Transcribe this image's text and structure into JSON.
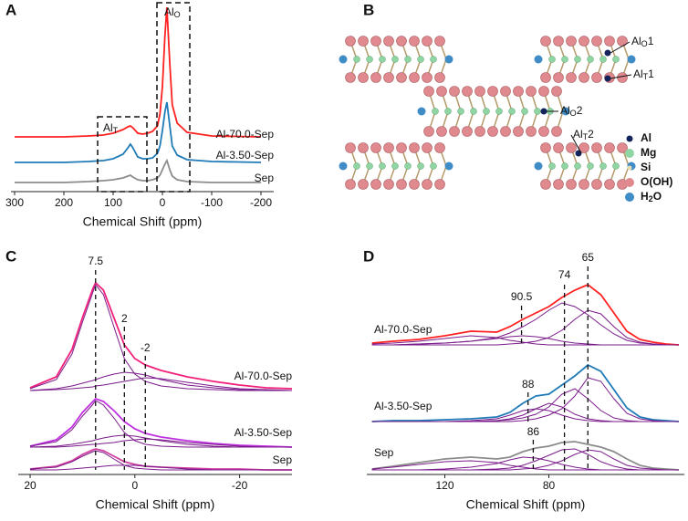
{
  "chart_data": [
    {
      "type": "spectra",
      "panel": "A",
      "x_label": "Chemical Shift (ppm)",
      "xlim": [
        300,
        -200
      ],
      "xticks": [
        300,
        200,
        100,
        0,
        -100,
        -200
      ],
      "annotations": [
        {
          "text": "Al",
          "sub": "T"
        },
        {
          "text": "Al",
          "sub": "O"
        }
      ],
      "x": [
        300,
        200,
        150,
        120,
        100,
        80,
        70,
        65,
        60,
        50,
        40,
        30,
        20,
        10,
        5,
        0,
        -5,
        -9,
        -15,
        -20,
        -30,
        -50,
        -100,
        -200
      ],
      "spectra": [
        {
          "name": "Al-70.0-Sep",
          "color": "#ff2020",
          "values": [
            0,
            0,
            1,
            2,
            4,
            8,
            11,
            12,
            10,
            4,
            3,
            4,
            6,
            12,
            25,
            55,
            110,
            142,
            80,
            35,
            15,
            5,
            1,
            0
          ]
        },
        {
          "name": "Al-3.50-Sep",
          "color": "#1f7bb8",
          "values": [
            0,
            0,
            1,
            2,
            4,
            9,
            16,
            20,
            16,
            6,
            4,
            4,
            5,
            10,
            18,
            35,
            55,
            66,
            40,
            18,
            8,
            3,
            1,
            0
          ]
        },
        {
          "name": "Sep",
          "color": "#8c8c8c",
          "values": [
            0,
            0,
            1,
            2,
            3,
            5,
            7,
            8,
            6,
            3,
            2,
            2,
            3,
            5,
            8,
            14,
            20,
            24,
            14,
            7,
            3,
            1,
            0,
            0
          ]
        }
      ]
    },
    {
      "type": "spectra",
      "panel": "C",
      "x_label": "Chemical Shift (ppm)",
      "xlim": [
        20,
        -30
      ],
      "xticks": [
        20,
        0,
        -20
      ],
      "markers": [
        7.5,
        2,
        -2
      ],
      "component_color": "#7a1a8a",
      "x": [
        20,
        15,
        12,
        10,
        8,
        7.5,
        6,
        4,
        2,
        0,
        -2,
        -5,
        -10,
        -15,
        -20,
        -25,
        -30
      ],
      "spectra": [
        {
          "name": "Al-70.0-Sep",
          "color": "#f0207a",
          "values": [
            3,
            15,
            45,
            80,
            112,
            118,
            110,
            80,
            50,
            35,
            28,
            22,
            15,
            10,
            6,
            3,
            2
          ],
          "components": [
            [
              2,
              12,
              40,
              75,
              108,
              116,
              105,
              70,
              35,
              18,
              10,
              5,
              2,
              1,
              0,
              0,
              0
            ],
            [
              0,
              2,
              5,
              8,
              11,
              12,
              15,
              18,
              20,
              19,
              17,
              12,
              6,
              3,
              1,
              0,
              0
            ],
            [
              0,
              1,
              2,
              3,
              4,
              5,
              6,
              8,
              10,
              12,
              14,
              13,
              9,
              5,
              2,
              1,
              0
            ]
          ]
        },
        {
          "name": "Al-3.50-Sep",
          "color": "#c030e0",
          "values": [
            1,
            8,
            22,
            38,
            50,
            53,
            50,
            40,
            28,
            20,
            15,
            11,
            7,
            4,
            2,
            1,
            0
          ],
          "components": [
            [
              1,
              6,
              19,
              34,
              47,
              51,
              46,
              32,
              16,
              7,
              3,
              1,
              0,
              0,
              0,
              0,
              0
            ],
            [
              0,
              1,
              3,
              5,
              7,
              8,
              10,
              12,
              13,
              12,
              10,
              7,
              3,
              1,
              0,
              0,
              0
            ],
            [
              0,
              0,
              1,
              2,
              3,
              3,
              4,
              5,
              7,
              8,
              9,
              8,
              5,
              3,
              1,
              0,
              0
            ]
          ]
        },
        {
          "name": "Sep",
          "color": "#d040a0",
          "values": [
            1,
            4,
            10,
            17,
            22,
            23,
            21,
            15,
            9,
            6,
            4,
            3,
            2,
            1,
            1,
            0,
            0
          ],
          "components": [
            [
              1,
              3,
              9,
              15,
              20,
              21,
              19,
              12,
              5,
              2,
              1,
              0,
              0,
              0,
              0,
              0,
              0
            ],
            [
              0,
              0,
              1,
              2,
              3,
              3,
              4,
              5,
              5,
              5,
              4,
              3,
              1,
              0,
              0,
              0,
              0
            ]
          ]
        }
      ]
    },
    {
      "type": "spectra",
      "panel": "D",
      "x_label": "Chemical Shift (ppm)",
      "xlim": [
        150,
        30
      ],
      "xticks": [
        120,
        80
      ],
      "markers": [
        90.5,
        74,
        65,
        88,
        86
      ],
      "component_color": "#7a1a8a",
      "x": [
        148,
        140,
        130,
        120,
        110,
        100,
        95,
        90,
        85,
        80,
        75,
        70,
        65,
        60,
        55,
        50,
        45,
        40,
        35,
        30
      ],
      "spectra": [
        {
          "name": "Al-70.0-Sep",
          "color": "#ff2020",
          "values": [
            2,
            4,
            6,
            10,
            15,
            14,
            20,
            28,
            35,
            42,
            52,
            60,
            66,
            55,
            35,
            15,
            6,
            3,
            1,
            0
          ],
          "components": [
            [
              1,
              2,
              4,
              7,
              10,
              8,
              5,
              3,
              1,
              0,
              0,
              0,
              0,
              0,
              0,
              0,
              0,
              0,
              0,
              0
            ],
            [
              0,
              0,
              1,
              2,
              4,
              7,
              9,
              10,
              9,
              7,
              4,
              2,
              1,
              0,
              0,
              0,
              0,
              0,
              0,
              0
            ],
            [
              0,
              0,
              1,
              2,
              4,
              8,
              13,
              20,
              28,
              38,
              46,
              42,
              33,
              22,
              12,
              5,
              2,
              1,
              0,
              0
            ],
            [
              0,
              0,
              0,
              0,
              0,
              0,
              1,
              2,
              4,
              8,
              16,
              28,
              38,
              34,
              20,
              8,
              3,
              1,
              0,
              0
            ]
          ]
        },
        {
          "name": "Al-3.50-Sep",
          "color": "#1f7bb8",
          "values": [
            0,
            1,
            1,
            2,
            3,
            5,
            10,
            20,
            28,
            30,
            40,
            50,
            62,
            55,
            35,
            15,
            5,
            2,
            1,
            0
          ],
          "components": [
            [
              0,
              0,
              0,
              0,
              1,
              3,
              7,
              12,
              14,
              12,
              7,
              3,
              1,
              0,
              0,
              0,
              0,
              0,
              0,
              0
            ],
            [
              0,
              0,
              0,
              0,
              0,
              1,
              3,
              7,
              14,
              20,
              16,
              8,
              3,
              1,
              0,
              0,
              0,
              0,
              0,
              0
            ],
            [
              0,
              0,
              0,
              0,
              0,
              1,
              2,
              4,
              8,
              16,
              30,
              36,
              25,
              12,
              4,
              1,
              0,
              0,
              0,
              0
            ],
            [
              0,
              0,
              0,
              0,
              0,
              0,
              0,
              1,
              3,
              7,
              14,
              28,
              48,
              44,
              25,
              9,
              3,
              1,
              0,
              0
            ]
          ]
        },
        {
          "name": "Sep",
          "color": "#8c8c8c",
          "values": [
            1,
            4,
            8,
            12,
            14,
            12,
            14,
            20,
            24,
            26,
            30,
            31,
            28,
            25,
            20,
            12,
            5,
            2,
            1,
            0
          ],
          "components": [
            [
              1,
              3,
              6,
              9,
              10,
              8,
              5,
              3,
              1,
              0,
              0,
              0,
              0,
              0,
              0,
              0,
              0,
              0,
              0,
              0
            ],
            [
              0,
              0,
              0,
              1,
              3,
              7,
              11,
              14,
              13,
              10,
              6,
              3,
              1,
              0,
              0,
              0,
              0,
              0,
              0,
              0
            ],
            [
              0,
              0,
              0,
              0,
              0,
              1,
              2,
              5,
              10,
              16,
              22,
              23,
              17,
              9,
              4,
              1,
              0,
              0,
              0,
              0
            ],
            [
              0,
              0,
              0,
              0,
              0,
              0,
              0,
              1,
              2,
              5,
              10,
              17,
              22,
              20,
              12,
              5,
              2,
              1,
              0,
              0
            ]
          ]
        }
      ]
    }
  ],
  "structure": {
    "panel": "B",
    "labels": [
      {
        "base": "Al",
        "sub": "O",
        "num": "1"
      },
      {
        "base": "Al",
        "sub": "T",
        "num": "1"
      },
      {
        "base": "Al",
        "sub": "O",
        "num": "2"
      },
      {
        "base": "Al",
        "sub": "T",
        "num": "2"
      }
    ],
    "legend": [
      {
        "base": "Al",
        "color": "#14235a"
      },
      {
        "base": "Mg",
        "color": "#8fd6a4"
      },
      {
        "base": "Si",
        "color": "#e6dcb4"
      },
      {
        "base": "O(OH)",
        "color": "#e08a90"
      },
      {
        "base": "H",
        "sub": "2",
        "num": "O",
        "color": "#3f8cc6"
      }
    ]
  }
}
